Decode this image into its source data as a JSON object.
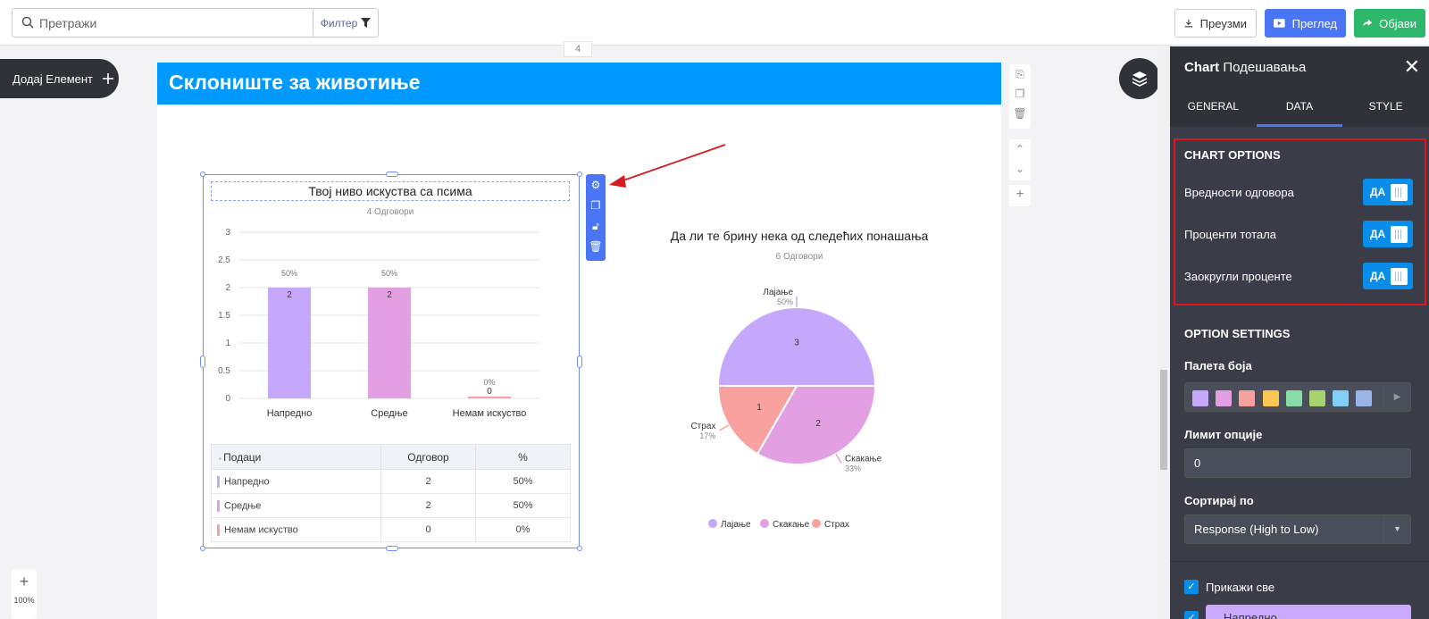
{
  "toolbar": {
    "search_placeholder": "Претражи",
    "filter_label": "Филтер",
    "download_label": "Преузми",
    "preview_label": "Преглед",
    "publish_label": "Објави"
  },
  "canvas": {
    "add_element_label": "Додај Елемент",
    "page_number": "4",
    "zoom_label": "100%"
  },
  "page": {
    "title": "Склониште за животиње"
  },
  "bar_widget": {
    "title": "Твој ниво искуства са псима",
    "responses": "4 Одговори"
  },
  "pie_widget": {
    "title": "Да ли те брину нека од следећих понашања",
    "responses": "6 Одговори"
  },
  "chart_data": [
    {
      "type": "bar",
      "title": "Твој ниво искуства са псима",
      "categories": [
        "Напредно",
        "Средње",
        "Немам искуство"
      ],
      "values": [
        2,
        2,
        0
      ],
      "percent_labels": [
        "50%",
        "50%",
        "0%"
      ],
      "colors": [
        "#c5a8fb",
        "#e2a0e3",
        "#f8a19f"
      ],
      "yticks": [
        "0",
        "0.5",
        "1",
        "1.5",
        "2",
        "2.5",
        "3"
      ],
      "ylim": [
        0,
        3
      ],
      "grid": true
    },
    {
      "type": "pie",
      "title": "Да ли те брину нека од следећих понашања",
      "labels": [
        "Лајање",
        "Скакање",
        "Страх"
      ],
      "values": [
        3,
        2,
        1
      ],
      "percent_labels": [
        "50%",
        "33%",
        "17%"
      ],
      "colors": [
        "#c5a8fb",
        "#e2a0e3",
        "#f8a19f"
      ],
      "legend": "bottom"
    }
  ],
  "data_table": {
    "headers": [
      "Подаци",
      "Одговор",
      "%"
    ],
    "rows": [
      {
        "label": "Напредно",
        "count": "2",
        "pct": "50%",
        "color": "#c5a8fb"
      },
      {
        "label": "Средње",
        "count": "2",
        "pct": "50%",
        "color": "#e2a0e3"
      },
      {
        "label": "Немам искуство",
        "count": "0",
        "pct": "0%",
        "color": "#f8a19f"
      }
    ]
  },
  "panel": {
    "title_bold": "Chart",
    "title_rest": "Подешавања",
    "tabs": [
      "GENERAL",
      "DATA",
      "STYLE"
    ],
    "chart_options_title": "CHART OPTIONS",
    "options": [
      {
        "label": "Вредности одговора",
        "toggle": "ДА"
      },
      {
        "label": "Проценти тотала",
        "toggle": "ДА"
      },
      {
        "label": "Заокругли проценте",
        "toggle": "ДА"
      }
    ],
    "option_settings_title": "OPTION SETTINGS",
    "palette_label": "Палета боја",
    "palette_colors": [
      "#c5a8fb",
      "#e2a0e3",
      "#f8a19f",
      "#fcc652",
      "#86dba6",
      "#a8d46f",
      "#7fcff7",
      "#9bb4e8"
    ],
    "limit_label": "Лимит опције",
    "limit_value": "0",
    "sort_label": "Сортирај по",
    "sort_value": "Response (High to Low)",
    "show_all_label": "Прикажи све",
    "first_option": "Напредно"
  }
}
